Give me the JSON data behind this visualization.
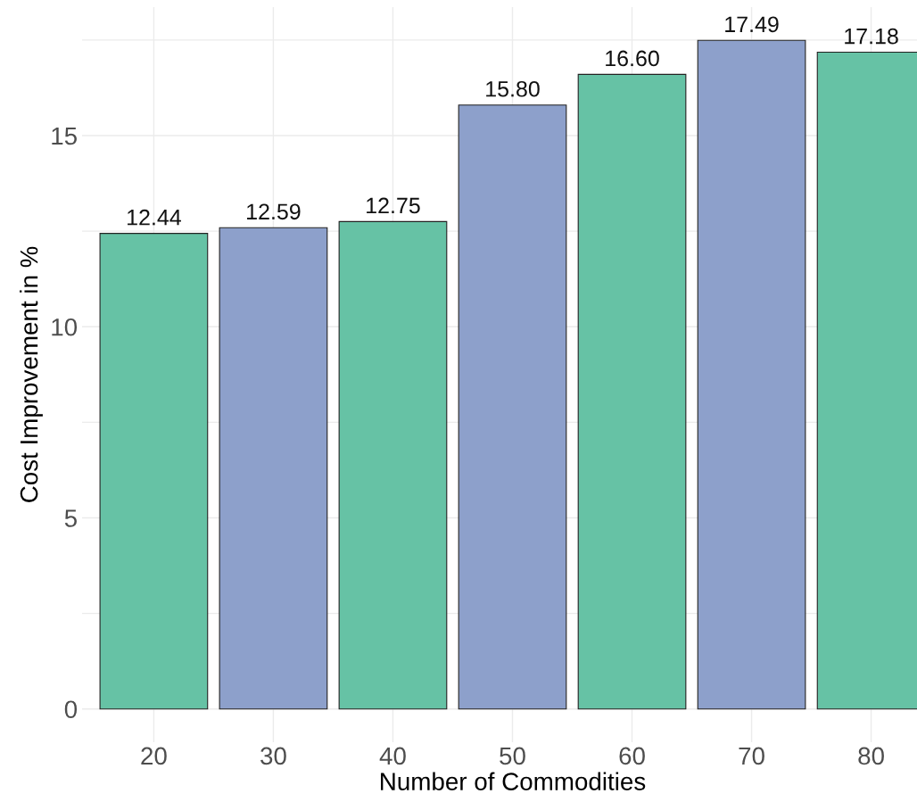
{
  "chart_data": {
    "type": "bar",
    "xlabel": "Number of Commodities",
    "ylabel": "Cost Improvement in %",
    "categories": [
      "20",
      "30",
      "40",
      "50",
      "60",
      "70",
      "80"
    ],
    "values": [
      12.44,
      12.59,
      12.75,
      15.8,
      16.6,
      17.49,
      17.18
    ],
    "value_labels": [
      "12.44",
      "12.59",
      "12.75",
      "15.80",
      "16.60",
      "17.49",
      "17.18"
    ],
    "colors": [
      "#66c2a5",
      "#8da0cb",
      "#66c2a5",
      "#8da0cb",
      "#66c2a5",
      "#8da0cb",
      "#66c2a5"
    ],
    "ylim": [
      -0.87,
      18.36
    ],
    "yticks": [
      0,
      {
        "value": 2.5,
        "label": null
      },
      5,
      {
        "value": 7.5,
        "label": null
      },
      10,
      {
        "value": 12.5,
        "label": null
      },
      15,
      {
        "value": 17.5,
        "label": null
      }
    ],
    "grid": true,
    "legend": false
  }
}
